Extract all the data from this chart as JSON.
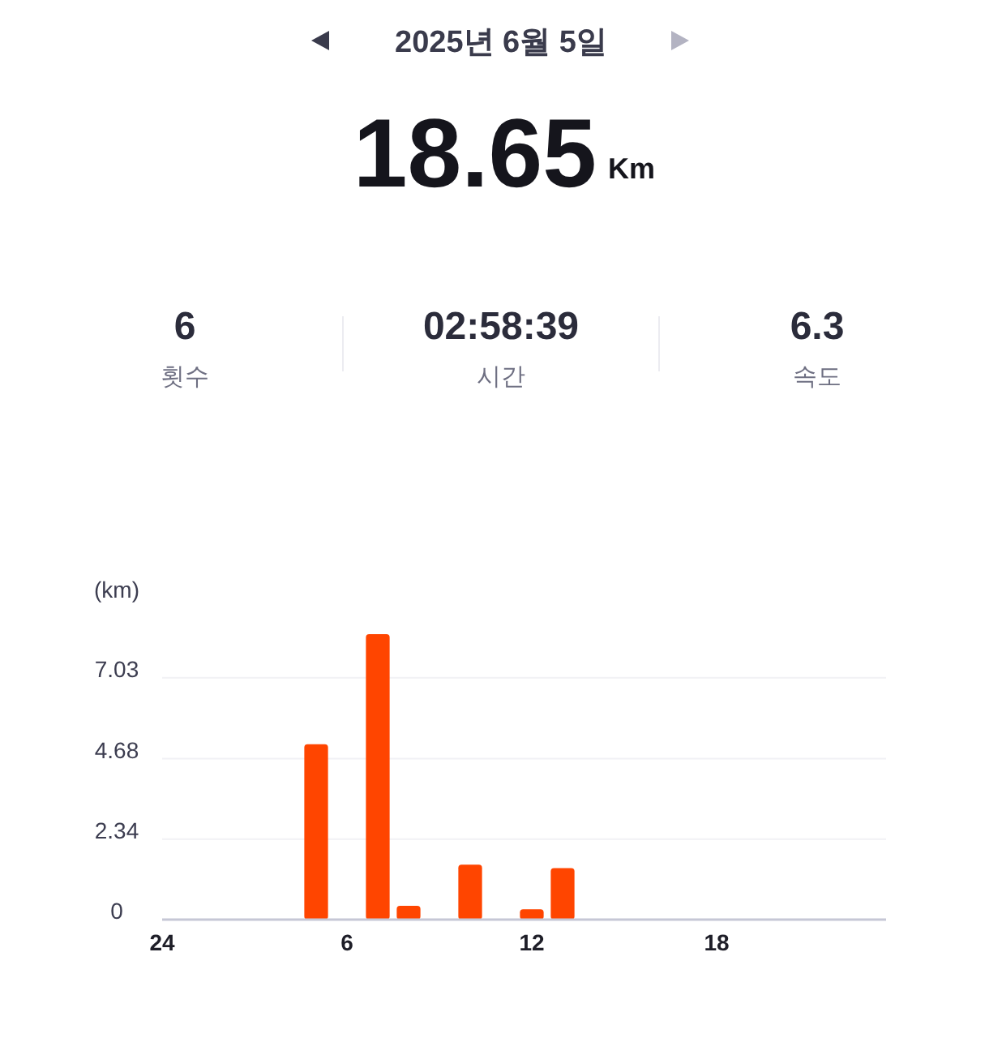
{
  "chart_data": [
    {
      "type": "other",
      "title": "2025년 6월 5일",
      "annotations": [
        "18.65",
        "Km",
        "6",
        "횟수",
        "02:58:39",
        "시간",
        "6.3",
        "속도"
      ]
    },
    {
      "type": "bar",
      "ylabel": "(km)",
      "categories": [
        "24",
        null,
        null,
        null,
        null,
        null,
        "6",
        null,
        null,
        null,
        null,
        null,
        "12",
        null,
        null,
        null,
        null,
        null,
        "18",
        null,
        null,
        null,
        null,
        null
      ],
      "values": [
        null,
        null,
        null,
        null,
        null,
        5.1,
        null,
        8.3,
        0.4,
        null,
        1.6,
        null,
        0.3,
        1.5,
        null,
        null,
        null,
        null,
        null,
        null,
        null,
        null,
        null,
        null
      ],
      "color": "#ff4500",
      "ylim": [
        0,
        8.3
      ],
      "yticks": [
        0,
        2.34,
        4.68,
        7.03
      ],
      "grid": "y"
    }
  ]
}
